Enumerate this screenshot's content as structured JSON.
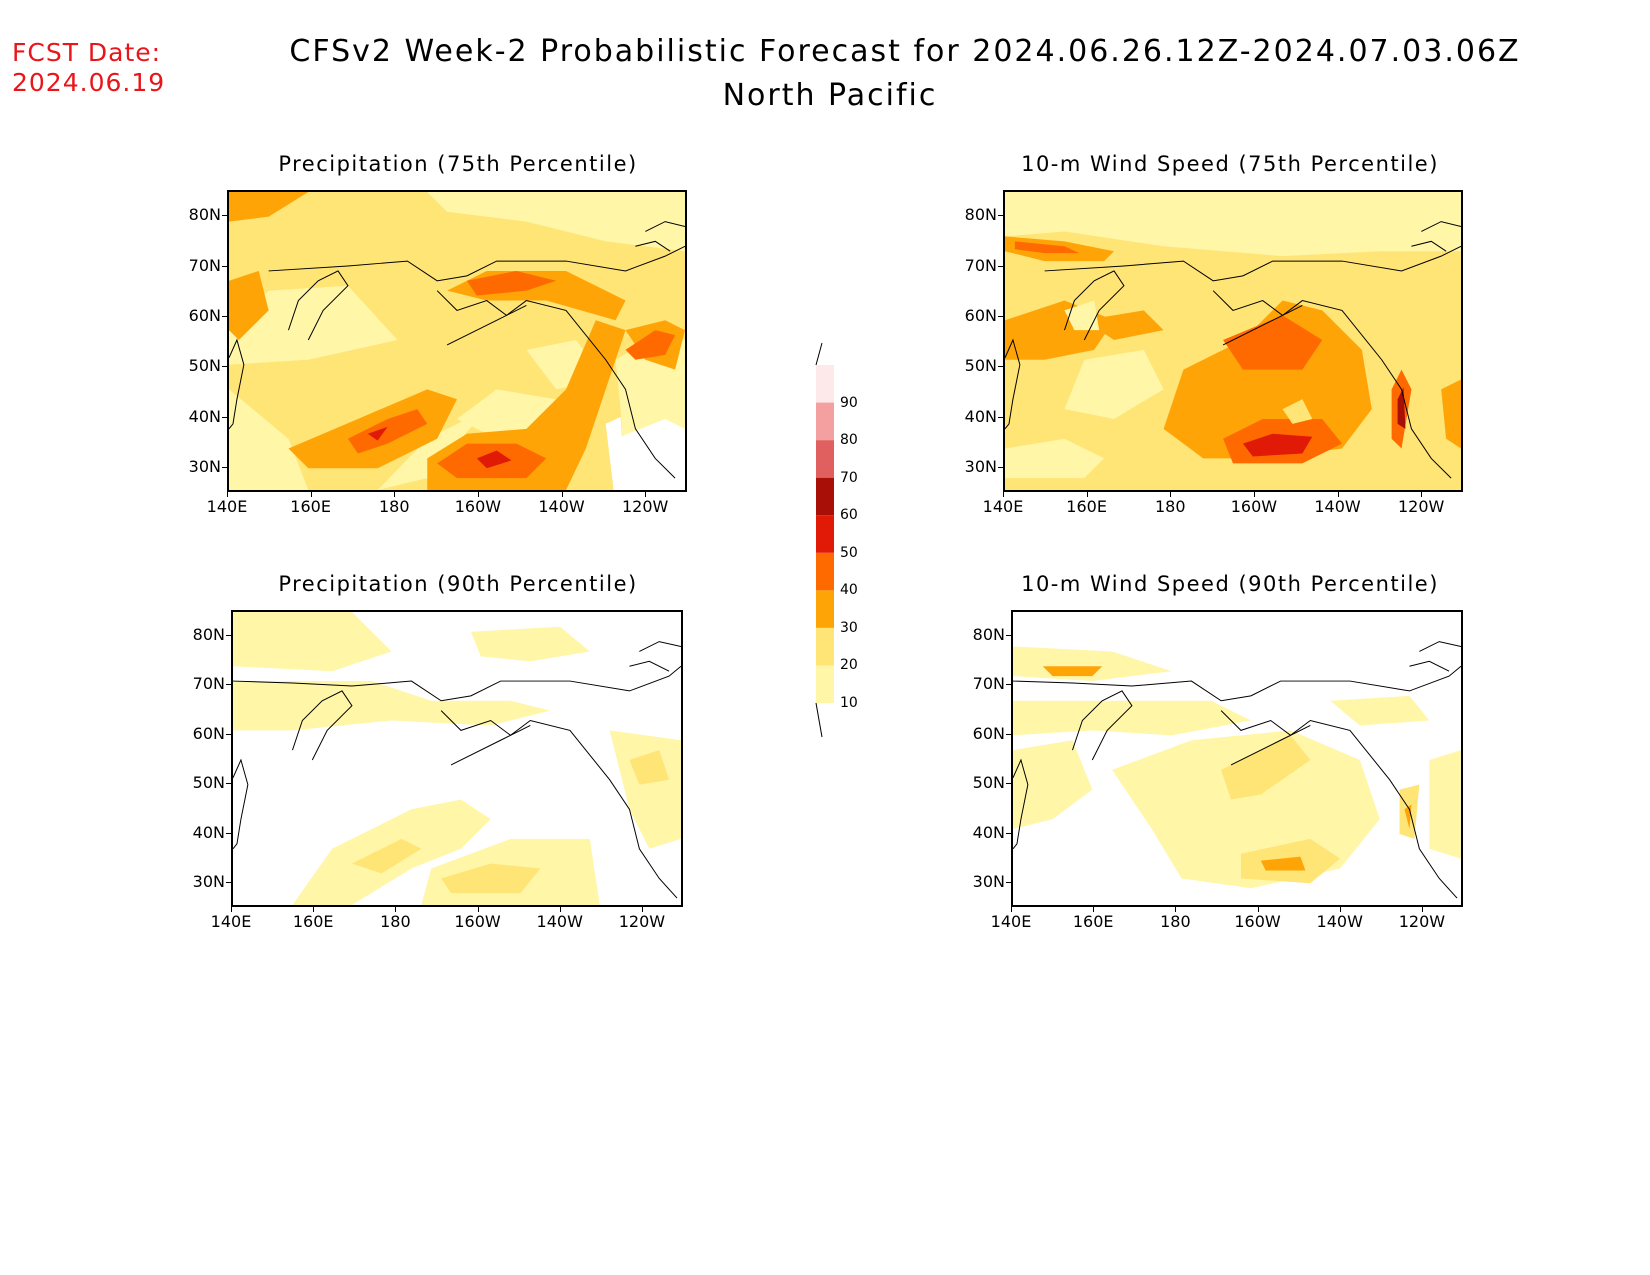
{
  "header": {
    "fcst_label": "FCST Date:",
    "fcst_date": "2024.06.19",
    "title": "CFSv2 Week-2 Probabilistic Forecast for 2024.06.26.12Z-2024.07.03.06Z",
    "subtitle": "North Pacific"
  },
  "panels": [
    {
      "title": "Precipitation (75th Percentile)"
    },
    {
      "title": "10-m Wind Speed (75th Percentile)"
    },
    {
      "title": "Precipitation (90th Percentile)"
    },
    {
      "title": "10-m Wind Speed (90th Percentile)"
    }
  ],
  "axes": {
    "lat_labels": [
      "80N",
      "70N",
      "60N",
      "50N",
      "40N",
      "30N"
    ],
    "lon_labels": [
      "140E",
      "160E",
      "180",
      "160W",
      "140W",
      "120W"
    ]
  },
  "colorbar": {
    "levels": [
      "10",
      "20",
      "30",
      "40",
      "50",
      "60",
      "70",
      "80",
      "90"
    ],
    "colors": [
      "#fff6a8",
      "#ffe476",
      "#ffa407",
      "#ff6a00",
      "#e01a06",
      "#a80f06",
      "#e06060",
      "#f5a0a0",
      "#fde8ea"
    ]
  }
}
